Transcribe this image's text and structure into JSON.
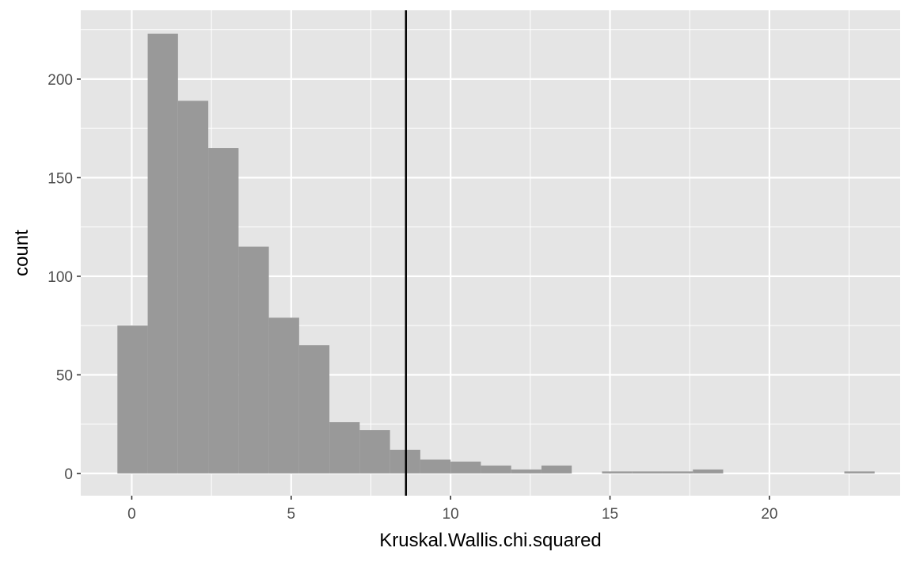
{
  "chart_data": {
    "type": "bar",
    "subtype": "histogram",
    "title": "",
    "xlabel": "Kruskal.Wallis.chi.squared",
    "ylabel": "count",
    "xlim": [
      -1.6,
      24.1
    ],
    "ylim": [
      -11.3,
      234.9
    ],
    "x_ticks": [
      0,
      5,
      10,
      15,
      20
    ],
    "y_ticks": [
      0,
      50,
      100,
      150,
      200
    ],
    "bin_width": 0.95,
    "bins": [
      {
        "x0": -0.45,
        "x1": 0.5,
        "count": 75
      },
      {
        "x0": 0.5,
        "x1": 1.45,
        "count": 223
      },
      {
        "x0": 1.45,
        "x1": 2.4,
        "count": 189
      },
      {
        "x0": 2.4,
        "x1": 3.35,
        "count": 165
      },
      {
        "x0": 3.35,
        "x1": 4.3,
        "count": 115
      },
      {
        "x0": 4.3,
        "x1": 5.25,
        "count": 79
      },
      {
        "x0": 5.25,
        "x1": 6.2,
        "count": 65
      },
      {
        "x0": 6.2,
        "x1": 7.15,
        "count": 26
      },
      {
        "x0": 7.15,
        "x1": 8.1,
        "count": 22
      },
      {
        "x0": 8.1,
        "x1": 9.05,
        "count": 12
      },
      {
        "x0": 9.05,
        "x1": 10.0,
        "count": 7
      },
      {
        "x0": 10.0,
        "x1": 10.95,
        "count": 6
      },
      {
        "x0": 10.95,
        "x1": 11.9,
        "count": 4
      },
      {
        "x0": 11.9,
        "x1": 12.85,
        "count": 2
      },
      {
        "x0": 12.85,
        "x1": 13.8,
        "count": 4
      },
      {
        "x0": 13.8,
        "x1": 14.75,
        "count": 0
      },
      {
        "x0": 14.75,
        "x1": 15.7,
        "count": 1
      },
      {
        "x0": 15.7,
        "x1": 16.65,
        "count": 1
      },
      {
        "x0": 16.65,
        "x1": 17.6,
        "count": 1
      },
      {
        "x0": 17.6,
        "x1": 18.55,
        "count": 2
      },
      {
        "x0": 18.55,
        "x1": 19.5,
        "count": 0
      },
      {
        "x0": 19.5,
        "x1": 20.45,
        "count": 0
      },
      {
        "x0": 20.45,
        "x1": 21.4,
        "count": 0
      },
      {
        "x0": 21.4,
        "x1": 22.35,
        "count": 0
      },
      {
        "x0": 22.35,
        "x1": 23.3,
        "count": 1
      }
    ],
    "vline_x": 8.6,
    "grid": true,
    "legend": "none",
    "colors": {
      "panel_background": "#e5e5e5",
      "grid_major": "#ffffff",
      "bar_fill": "#999999",
      "vline": "#000000",
      "tick_label": "#4d4d4d",
      "tick_mark": "#333333"
    }
  }
}
